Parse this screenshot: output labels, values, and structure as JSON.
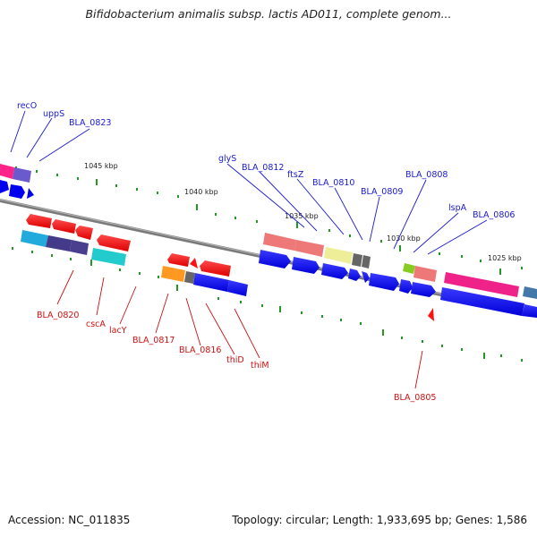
{
  "title": "Bifidobacterium animalis subsp. lactis AD011, complete genom...",
  "footer": {
    "accession": "Accession: NC_011835",
    "topology": "Topology: circular; Length: 1,933,695 bp; Genes: 1,586"
  },
  "kbp_labels": [
    "1045 kbp",
    "1040 kbp",
    "1035 kbp",
    "1030 kbp",
    "1025 kbp"
  ],
  "blue_labels": [
    "recO",
    "uppS",
    "BLA_0823",
    "glyS",
    "BLA_0812",
    "ftsZ",
    "BLA_0810",
    "BLA_0809",
    "BLA_0808",
    "lspA",
    "BLA_0806"
  ],
  "red_labels": [
    "BLA_0820",
    "cscA",
    "lacY",
    "BLA_0817",
    "BLA_0816",
    "thiD",
    "thiM",
    "BLA_0805"
  ],
  "colors": {
    "forward_gene": "#0000ee",
    "reverse_gene": "#ee1111",
    "backbone": "#808080",
    "tick": "#228822",
    "blue_label": "#1a1ad0",
    "red_label": "#cc1111"
  }
}
